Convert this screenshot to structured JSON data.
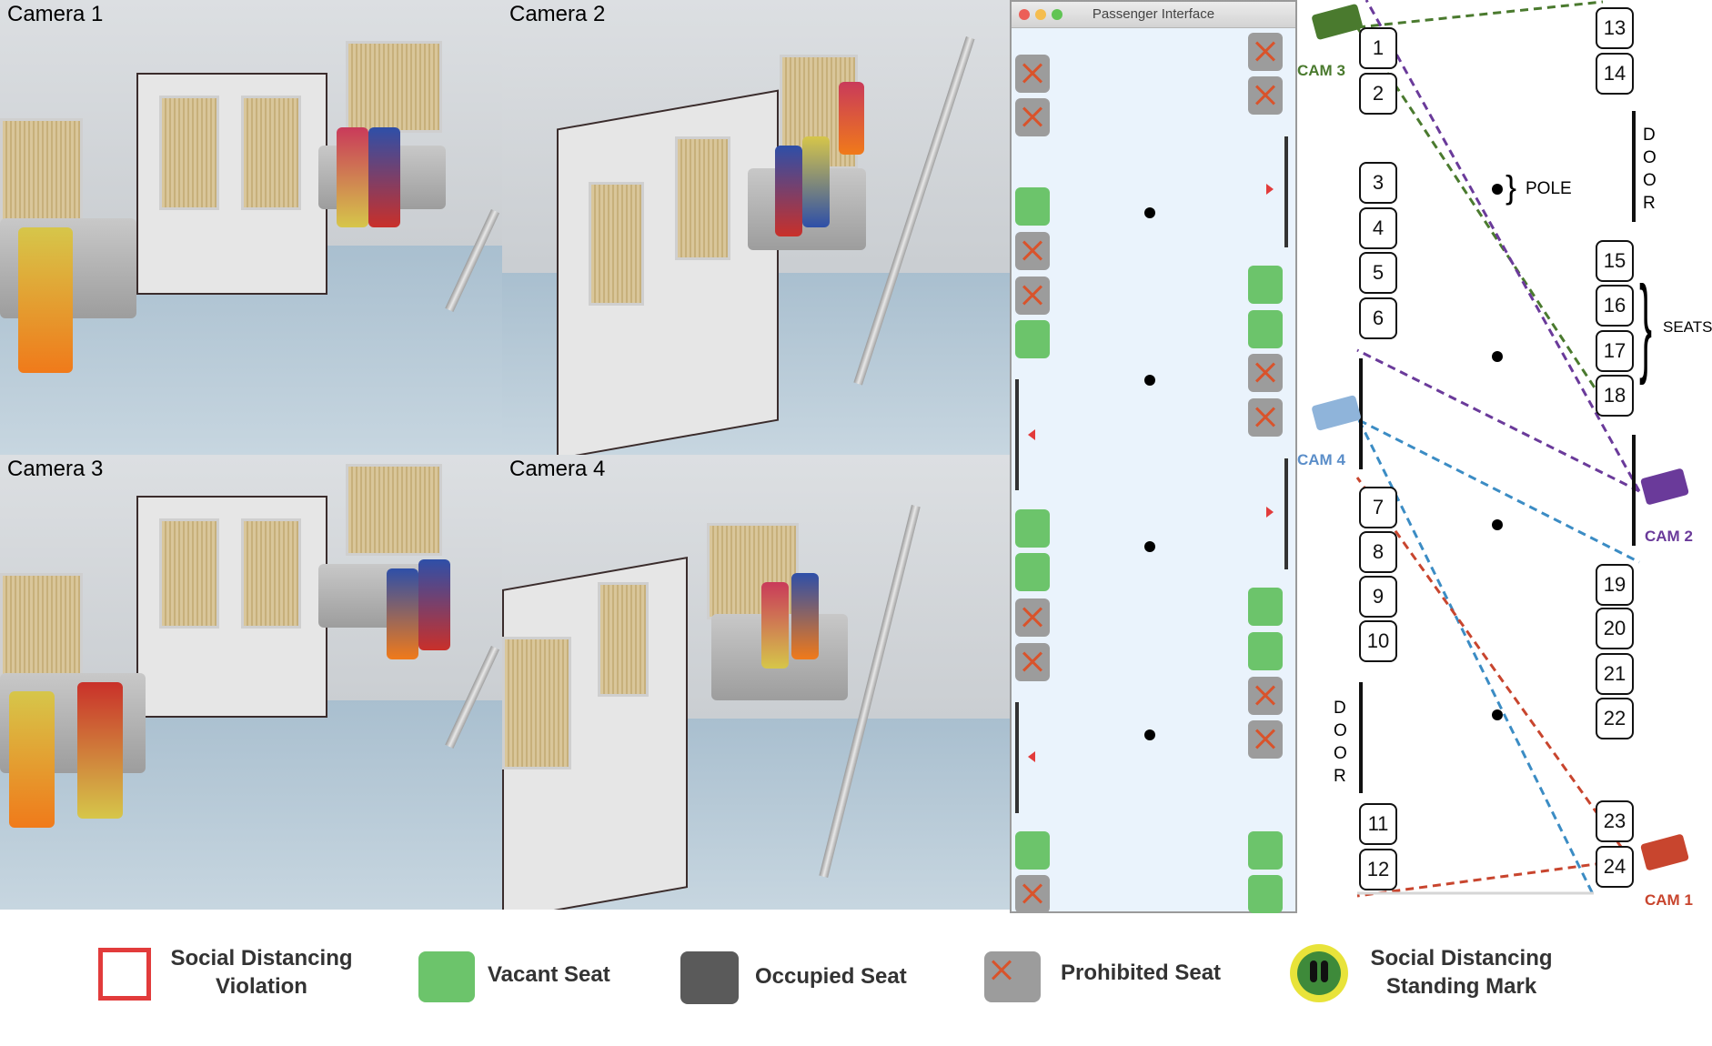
{
  "cameras": [
    {
      "label": "Camera 1"
    },
    {
      "label": "Camera 2"
    },
    {
      "label": "Camera 3"
    },
    {
      "label": "Camera 4"
    }
  ],
  "passenger_interface": {
    "title": "Passenger Interface",
    "left_column": [
      "prohibited",
      "prohibited",
      "vacant",
      "prohibited",
      "prohibited",
      "vacant",
      "vacant",
      "vacant",
      "prohibited",
      "prohibited",
      "vacant",
      "prohibited"
    ],
    "right_column": [
      "prohibited",
      "prohibited",
      "vacant",
      "vacant",
      "prohibited",
      "prohibited",
      "vacant",
      "vacant",
      "prohibited",
      "prohibited",
      "vacant",
      "vacant"
    ]
  },
  "floor_plan": {
    "left_seats": [
      "1",
      "2",
      "3",
      "4",
      "5",
      "6",
      "7",
      "8",
      "9",
      "10",
      "11",
      "12"
    ],
    "right_seats": [
      "13",
      "14",
      "15",
      "16",
      "17",
      "18",
      "19",
      "20",
      "21",
      "22",
      "23",
      "24"
    ],
    "door_label_top": "D\nO\nO\nR",
    "door_label_bottom": "D\nO\nO\nR",
    "pole_label": "POLE",
    "seats_label": "SEATS",
    "cameras": [
      {
        "label": "CAM 3",
        "color": "#4a7a2e"
      },
      {
        "label": "CAM 4",
        "color": "#5b8ec9"
      },
      {
        "label": "CAM 2",
        "color": "#6a3a9a"
      },
      {
        "label": "CAM 1",
        "color": "#c8452e"
      }
    ]
  },
  "legend": {
    "violation": "Social Distancing Violation",
    "vacant": "Vacant Seat",
    "occupied": "Occupied Seat",
    "prohibited": "Prohibited Seat",
    "standing_mark": "Social Distancing Standing Mark"
  },
  "colors": {
    "vacant": "#6cc46b",
    "occupied": "#5a5a5a",
    "prohibited_bg": "#9c9c9c",
    "prohibited_x": "#d9532b",
    "violation": "#e23b3b"
  }
}
